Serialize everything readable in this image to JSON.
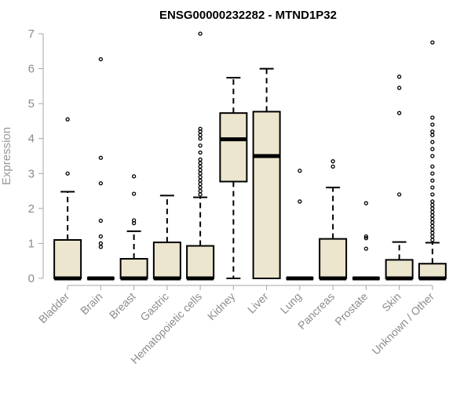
{
  "chart_data": {
    "type": "boxplot",
    "title": "ENSG00000232282 - MTND1P32",
    "xlabel": "",
    "ylabel": "Expression",
    "ylim": [
      0,
      7
    ],
    "yticks": [
      0,
      1,
      2,
      3,
      4,
      5,
      6,
      7
    ],
    "box_fill": "#ede6cf",
    "categories": [
      "Bladder",
      "Brain",
      "Breast",
      "Gastric",
      "Hematopoietic cells",
      "Kidney",
      "Liver",
      "Lung",
      "Pancreas",
      "Prostate",
      "Skin",
      "Unknown / Other"
    ],
    "series": [
      {
        "category": "Bladder",
        "min": 0,
        "q1": 0,
        "median": 0,
        "q3": 1.1,
        "max": 2.48,
        "outliers": [
          3.0,
          4.55
        ]
      },
      {
        "category": "Brain",
        "min": 0,
        "q1": 0,
        "median": 0,
        "q3": 0,
        "max": 0,
        "outliers": [
          0.9,
          1.0,
          1.2,
          1.65,
          2.72,
          3.45,
          6.27
        ]
      },
      {
        "category": "Breast",
        "min": 0,
        "q1": 0,
        "median": 0,
        "q3": 0.56,
        "max": 1.35,
        "outliers": [
          1.58,
          1.66,
          2.42,
          2.92
        ]
      },
      {
        "category": "Gastric",
        "min": 0,
        "q1": 0,
        "median": 0,
        "q3": 1.03,
        "max": 2.37,
        "outliers": []
      },
      {
        "category": "Hematopoietic cells",
        "min": 0,
        "q1": 0,
        "median": 0,
        "q3": 0.93,
        "max": 2.32,
        "outliers": [
          2.4,
          2.5,
          2.6,
          2.7,
          2.8,
          2.9,
          3.0,
          3.1,
          3.2,
          3.3,
          3.4,
          3.6,
          3.8,
          4.0,
          4.1,
          4.2,
          4.28,
          7.0
        ]
      },
      {
        "category": "Kidney",
        "min": 0,
        "q1": 2.77,
        "median": 3.98,
        "q3": 4.73,
        "max": 5.74,
        "outliers": []
      },
      {
        "category": "Liver",
        "min": 0,
        "q1": 0,
        "median": 3.5,
        "q3": 4.77,
        "max": 6.0,
        "outliers": []
      },
      {
        "category": "Lung",
        "min": 0,
        "q1": 0,
        "median": 0,
        "q3": 0,
        "max": 0,
        "outliers": [
          2.2,
          3.08
        ]
      },
      {
        "category": "Pancreas",
        "min": 0,
        "q1": 0,
        "median": 0,
        "q3": 1.13,
        "max": 2.6,
        "outliers": [
          3.2,
          3.35
        ]
      },
      {
        "category": "Prostate",
        "min": 0,
        "q1": 0,
        "median": 0,
        "q3": 0,
        "max": 0,
        "outliers": [
          0.85,
          1.15,
          1.2,
          2.15
        ]
      },
      {
        "category": "Skin",
        "min": 0,
        "q1": 0,
        "median": 0,
        "q3": 0.53,
        "max": 1.04,
        "outliers": [
          2.4,
          4.73,
          5.45,
          5.77
        ]
      },
      {
        "category": "Unknown / Other",
        "min": 0,
        "q1": 0,
        "median": 0,
        "q3": 0.42,
        "max": 1.02,
        "outliers": [
          1.1,
          1.2,
          1.3,
          1.4,
          1.5,
          1.6,
          1.7,
          1.8,
          1.9,
          2.0,
          2.1,
          2.2,
          2.4,
          2.6,
          2.8,
          3.0,
          3.2,
          3.5,
          3.7,
          3.9,
          4.1,
          4.2,
          4.4,
          4.6,
          6.75
        ]
      }
    ]
  }
}
